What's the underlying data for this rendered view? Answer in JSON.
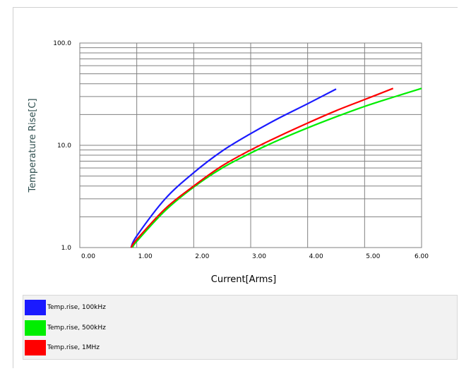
{
  "chart_data": {
    "type": "line",
    "title": "",
    "xlabel": "Current[Arms]",
    "ylabel": "Temperature Rise[C]",
    "xlim": [
      0,
      6
    ],
    "ylim": [
      1,
      100
    ],
    "yscale": "log",
    "grid": true,
    "legend_position": "bottom",
    "x_ticks": [
      "0.00",
      "1.00",
      "2.00",
      "3.00",
      "4.00",
      "5.00",
      "6.00"
    ],
    "y_ticks": [
      "1.0",
      "10.0",
      "100.0"
    ],
    "series": [
      {
        "name": "Temp.rise, 100kHz",
        "color": "#1a1aff",
        "x": [
          0.9,
          1.0,
          1.5,
          2.0,
          2.5,
          3.0,
          3.5,
          4.0,
          4.5
        ],
        "y": [
          1.0,
          1.3,
          3.0,
          5.4,
          8.8,
          13.0,
          18.5,
          25.5,
          35.5
        ]
      },
      {
        "name": "Temp.rise, 500kHz",
        "color": "#00ee00",
        "x": [
          0.93,
          1.0,
          1.5,
          2.0,
          2.5,
          3.0,
          3.5,
          4.0,
          4.5,
          5.0,
          5.5,
          6.0
        ],
        "y": [
          1.0,
          1.15,
          2.3,
          3.9,
          6.0,
          8.4,
          11.3,
          14.8,
          19.0,
          24.0,
          29.5,
          36.0
        ]
      },
      {
        "name": "Temp.rise, 1MHz",
        "color": "#ff0000",
        "x": [
          0.9,
          1.0,
          1.5,
          2.0,
          2.5,
          3.0,
          3.5,
          4.0,
          4.5,
          5.0,
          5.5
        ],
        "y": [
          1.0,
          1.2,
          2.4,
          4.0,
          6.3,
          9.0,
          12.3,
          16.5,
          21.8,
          28.0,
          36.0
        ]
      }
    ]
  }
}
